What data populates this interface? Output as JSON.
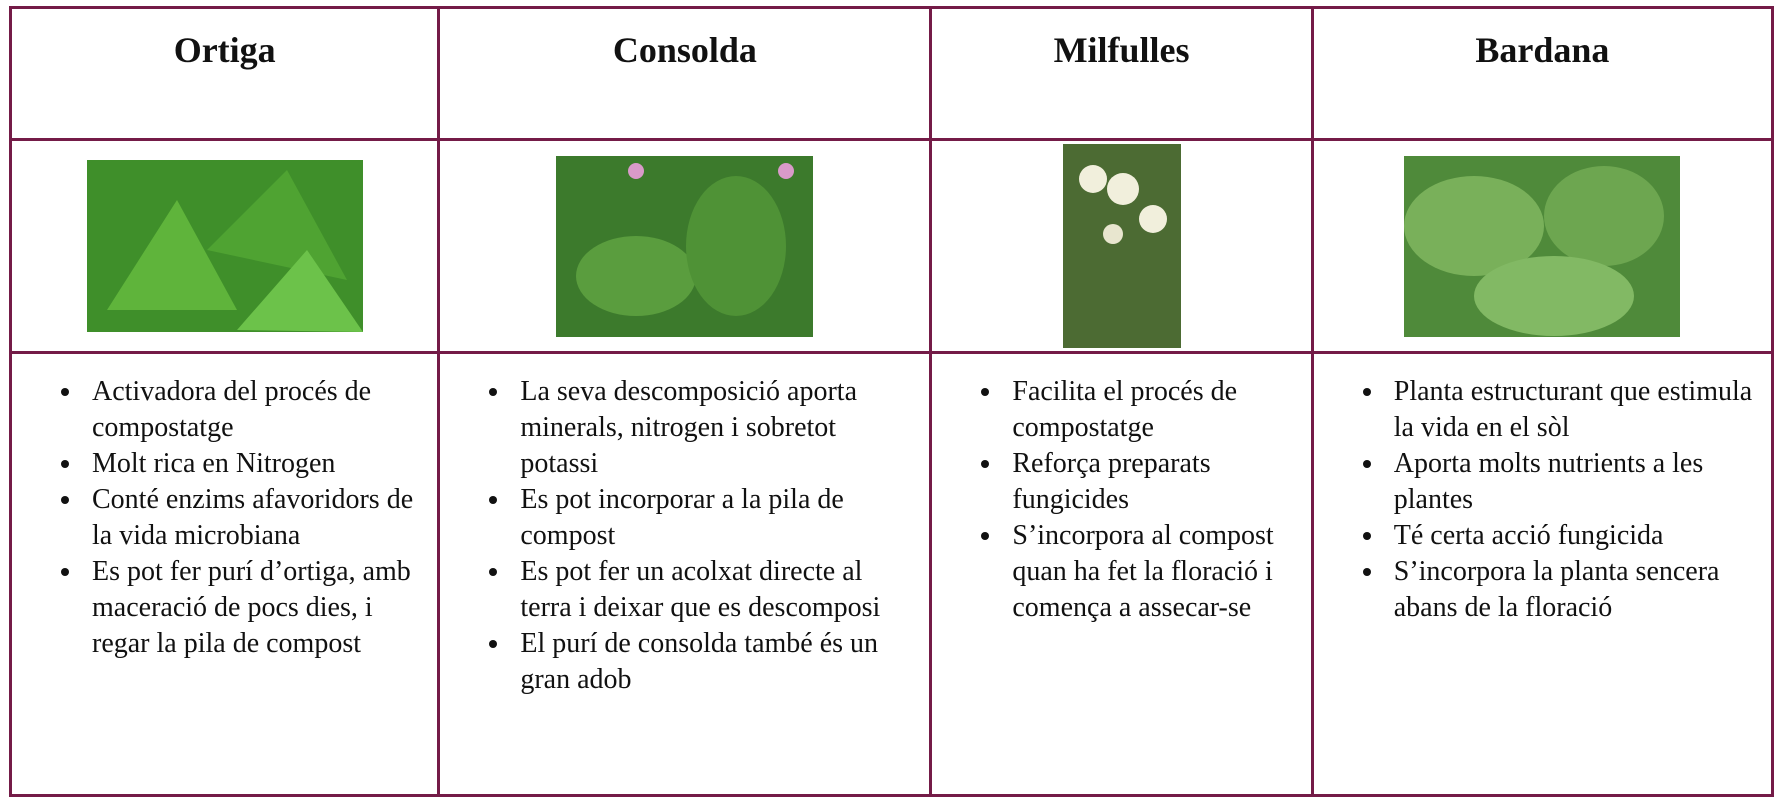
{
  "table": {
    "headers": [
      "Ortiga",
      "Consolda",
      "Milfulles",
      "Bardana"
    ],
    "items": [
      [
        "Activadora del procés de compostatge",
        "Molt rica en Nitrogen",
        "Conté enzims afavoridors de la vida microbiana",
        "Es pot fer purí d’ortiga, amb maceració de pocs dies, i regar la pila de compost"
      ],
      [
        "La seva descomposició aporta minerals, nitrogen i sobretot potassi",
        "Es pot incorporar a la pila de compost",
        "Es pot fer un acolxat directe al terra i deixar que es descomposi",
        "El purí de consolda també és un gran adob"
      ],
      [
        "Facilita el procés de compostatge",
        "Reforça preparats fungicides",
        "S’incorpora al compost quan ha fet la floració i comença a assecar-se"
      ],
      [
        "Planta estructurant que estimula la vida en el sòl",
        "Aporta molts nutrients a les plantes",
        "Té certa acció fungicida",
        "S’incorpora la planta sencera abans de la floració"
      ]
    ]
  }
}
